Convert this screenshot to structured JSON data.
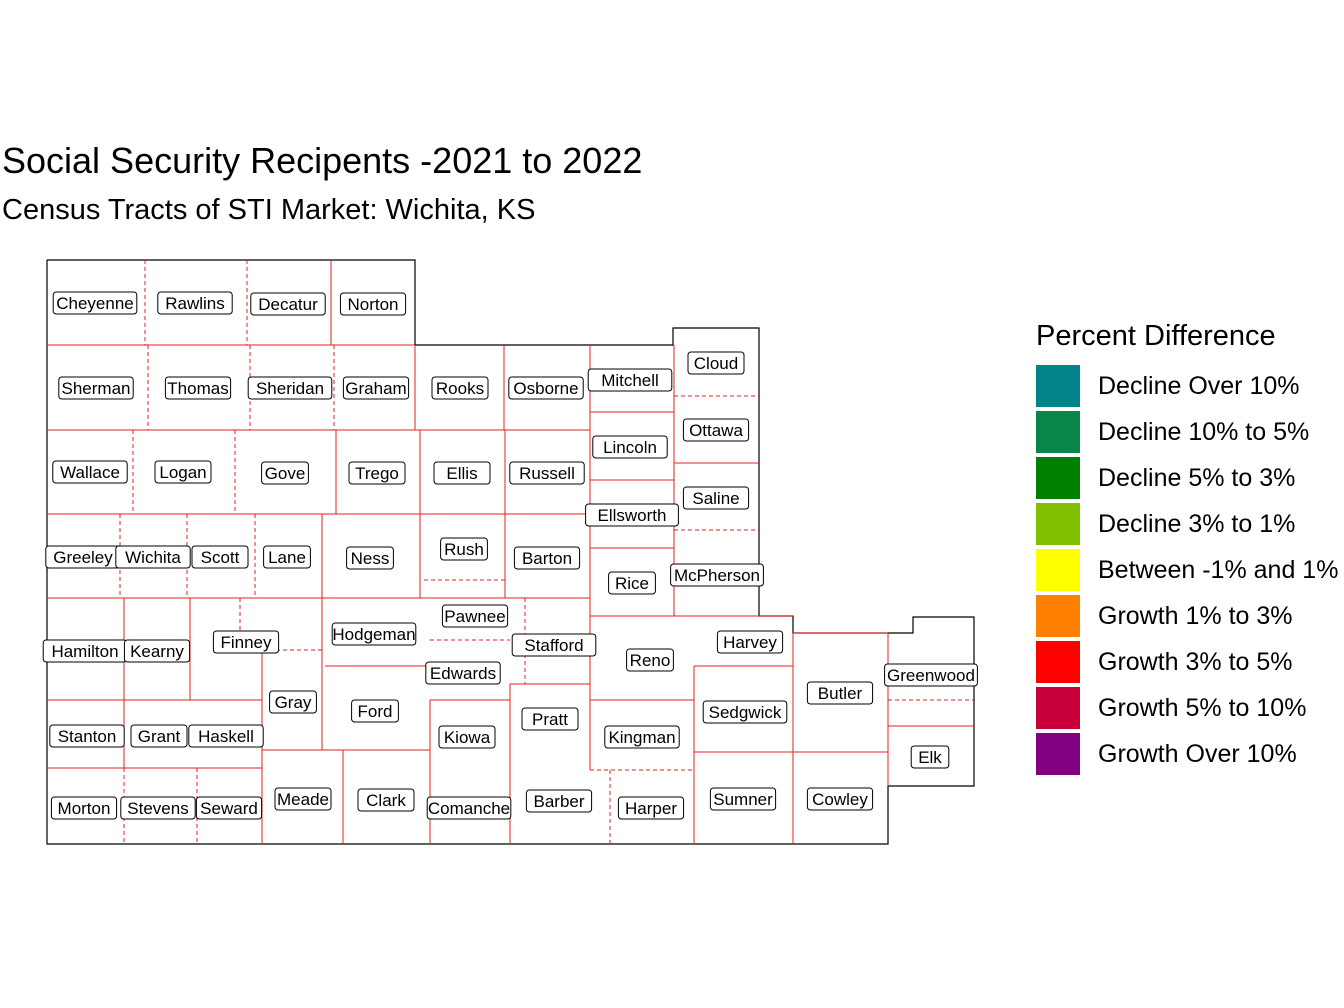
{
  "title": "Social Security Recipents -2021 to 2022",
  "subtitle": "Census Tracts of STI Market: Wichita, KS",
  "legend": {
    "title": "Percent Difference",
    "items": [
      {
        "label": "Decline Over 10%",
        "color": "#00848A"
      },
      {
        "label": "Decline 10% to 5%",
        "color": "#08854A"
      },
      {
        "label": "Decline 5% to 3%",
        "color": "#008000"
      },
      {
        "label": "Decline 3% to 1%",
        "color": "#80C000"
      },
      {
        "label": "Between -1% and 1%",
        "color": "#FFFF00"
      },
      {
        "label": "Growth 1% to 3%",
        "color": "#FF8000"
      },
      {
        "label": "Growth 3% to 5%",
        "color": "#FF0000"
      },
      {
        "label": "Growth 5% to 10%",
        "color": "#C8003C"
      },
      {
        "label": "Growth Over 10%",
        "color": "#800080"
      }
    ]
  },
  "counties": [
    "Cheyenne",
    "Rawlins",
    "Decatur",
    "Norton",
    "Sherman",
    "Thomas",
    "Sheridan",
    "Graham",
    "Rooks",
    "Osborne",
    "Mitchell",
    "Cloud",
    "Wallace",
    "Logan",
    "Gove",
    "Trego",
    "Ellis",
    "Russell",
    "Lincoln",
    "Ottawa",
    "Saline",
    "Ellsworth",
    "Greeley",
    "Wichita",
    "Scott",
    "Lane",
    "Ness",
    "Rush",
    "Barton",
    "Rice",
    "McPherson",
    "Pawnee",
    "Hamilton",
    "Kearny",
    "Finney",
    "Hodgeman",
    "Stafford",
    "Reno",
    "Harvey",
    "Edwards",
    "Gray",
    "Ford",
    "Pratt",
    "Butler",
    "Greenwood",
    "Sedgwick",
    "Stanton",
    "Grant",
    "Haskell",
    "Kiowa",
    "Kingman",
    "Elk",
    "Morton",
    "Stevens",
    "Seward",
    "Meade",
    "Clark",
    "Comanche",
    "Barber",
    "Harper",
    "Sumner",
    "Cowley"
  ]
}
